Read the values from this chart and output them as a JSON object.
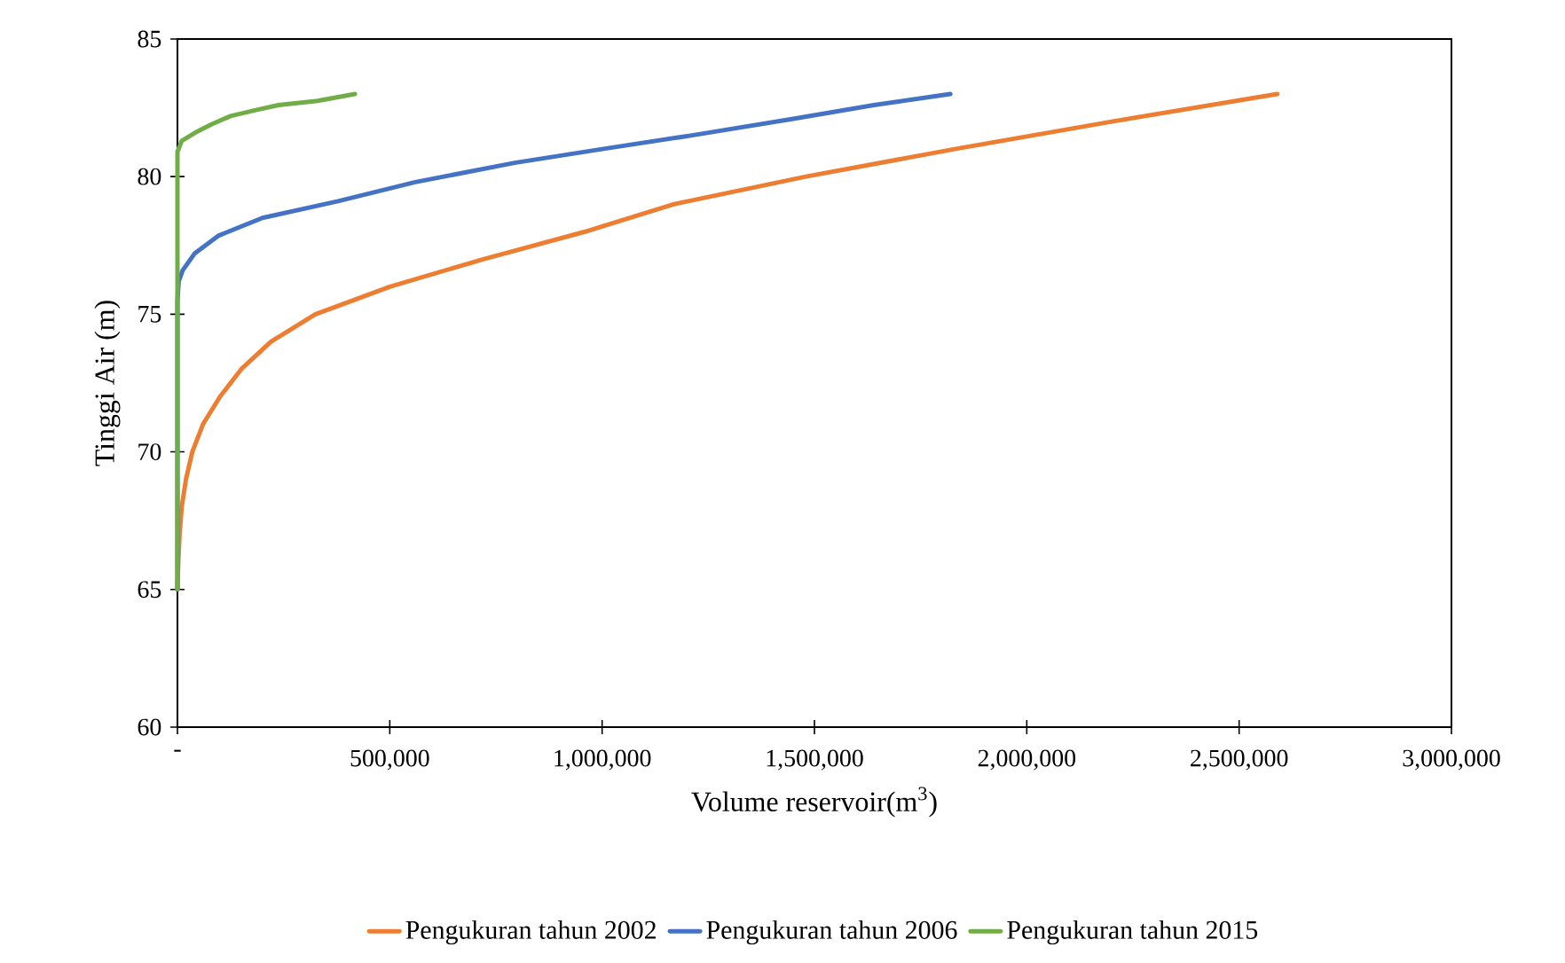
{
  "chart_data": {
    "type": "line",
    "xlabel": "Volume reservoir(m$^{3}$)",
    "ylabel": "Tinggi Air (m)",
    "xlim": [
      0,
      3000000
    ],
    "ylim": [
      60,
      85
    ],
    "xticks": [
      {
        "value": 0,
        "label": "-"
      },
      {
        "value": 500000,
        "label": "500,000"
      },
      {
        "value": 1000000,
        "label": "1,000,000"
      },
      {
        "value": 1500000,
        "label": "1,500,000"
      },
      {
        "value": 2000000,
        "label": "2,000,000"
      },
      {
        "value": 2500000,
        "label": "2,500,000"
      },
      {
        "value": 3000000,
        "label": "3,000,000"
      }
    ],
    "yticks": [
      60,
      65,
      70,
      75,
      80,
      85
    ],
    "legend": "bottom",
    "grid": false,
    "marker": "none",
    "line_style": "solid",
    "series": [
      {
        "name": "Pengukuran tahun 2002",
        "color": "#ed7d31",
        "x": [
          0,
          2000,
          5000,
          10000,
          20000,
          35000,
          60000,
          100000,
          150000,
          220000,
          325000,
          500000,
          720000,
          960000,
          1170000,
          1480000,
          1830000,
          2200000,
          2590000
        ],
        "values": [
          65,
          66,
          67,
          68,
          69,
          70,
          71,
          72,
          73,
          74,
          75,
          76,
          77,
          78,
          79,
          80,
          81,
          82,
          83
        ]
      },
      {
        "name": "Pengukuran tahun 2006",
        "color": "#4472c4",
        "x": [
          0,
          0,
          3000,
          12500,
          40000,
          96000,
          200000,
          376000,
          560000,
          794000,
          1000000,
          1212000,
          1450000,
          1640000,
          1820000
        ],
        "values": [
          65,
          75.5,
          76.2,
          76.6,
          77.2,
          77.85,
          78.5,
          79.1,
          79.8,
          80.5,
          81,
          81.5,
          82.1,
          82.6,
          83
        ]
      },
      {
        "name": "Pengukuran tahun 2015",
        "color": "#70ad47",
        "x": [
          0,
          0,
          10000,
          42000,
          80000,
          125000,
          180000,
          238000,
          330000,
          418000
        ],
        "values": [
          65,
          80.9,
          81.3,
          81.6,
          81.9,
          82.2,
          82.4,
          82.6,
          82.75,
          83
        ]
      }
    ]
  }
}
